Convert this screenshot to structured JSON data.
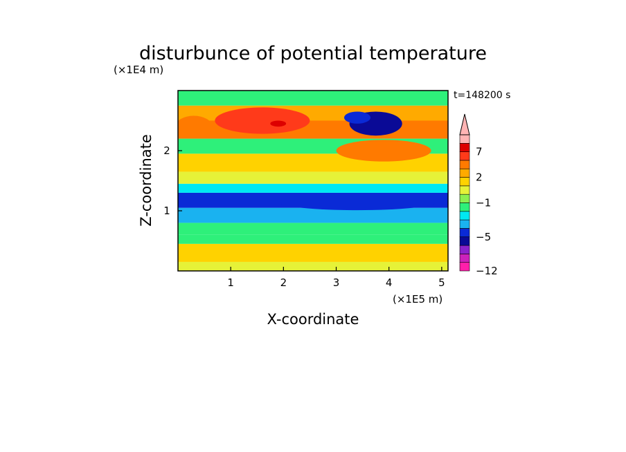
{
  "chart_data": {
    "type": "heatmap",
    "title": "disturbunce of potential temperature",
    "xlabel": "X-coordinate",
    "ylabel": "Z-coordinate",
    "x_unit": "(×1E5 m)",
    "y_unit": "(×1E4 m)",
    "time_label": "t=148200 s",
    "xlim": [
      0,
      5.12
    ],
    "ylim": [
      0,
      3.0
    ],
    "x_ticks": [
      {
        "value": 1,
        "label": "1"
      },
      {
        "value": 2,
        "label": "2"
      },
      {
        "value": 3,
        "label": "3"
      },
      {
        "value": 4,
        "label": "4"
      },
      {
        "value": 5,
        "label": "5"
      }
    ],
    "y_ticks": [
      {
        "value": 1,
        "label": "1"
      },
      {
        "value": 2,
        "label": "2"
      }
    ],
    "colorbar": {
      "levels": [
        -12,
        -10,
        -8,
        -6,
        -5,
        -4,
        -3,
        -2,
        -1,
        0,
        1,
        2,
        3,
        5,
        7,
        9,
        11
      ],
      "labels": [
        {
          "value": 7,
          "label": "7"
        },
        {
          "value": 2,
          "label": "2"
        },
        {
          "value": -1,
          "label": "−1"
        },
        {
          "value": -5,
          "label": "−5"
        },
        {
          "value": -12,
          "label": "−12"
        }
      ],
      "colors": [
        "#ff1faa",
        "#cc22bb",
        "#8b22cc",
        "#0a0a96",
        "#0a2ad6",
        "#1ab2f0",
        "#00e8f2",
        "#2ef07a",
        "#8cf050",
        "#e6f238",
        "#ffd200",
        "#ffaa00",
        "#ff7a00",
        "#ff3a1a",
        "#dd0000",
        "#ffb4b4"
      ],
      "extend": "max"
    },
    "bands": [
      {
        "z": [
          0.0,
          0.15
        ],
        "value": 0.5
      },
      {
        "z": [
          0.15,
          0.45
        ],
        "value": 1.5
      },
      {
        "z": [
          0.45,
          0.6
        ],
        "value": -1.5
      },
      {
        "z": [
          0.6,
          0.8
        ],
        "value": -1.5
      },
      {
        "z": [
          0.8,
          1.05
        ],
        "value": -3.5
      },
      {
        "z": [
          1.05,
          1.3
        ],
        "value": -4.5
      },
      {
        "z": [
          1.3,
          1.45
        ],
        "value": -2.5
      },
      {
        "z": [
          1.45,
          1.65
        ],
        "value": 0.5
      },
      {
        "z": [
          1.65,
          1.95
        ],
        "value": 1.5
      },
      {
        "z": [
          1.95,
          2.2
        ],
        "value": -1.5
      },
      {
        "z": [
          2.2,
          2.5
        ],
        "value": 3.5
      },
      {
        "z": [
          2.5,
          2.75
        ],
        "value": 2.5
      },
      {
        "z": [
          2.75,
          3.0
        ],
        "value": -1.5
      }
    ],
    "features": [
      {
        "x": 3.75,
        "z": 2.45,
        "rx": 0.5,
        "rz": 0.2,
        "value": -5.5
      },
      {
        "x": 1.6,
        "z": 2.5,
        "rx": 0.9,
        "rz": 0.22,
        "value": 5.0
      },
      {
        "x": 0.3,
        "z": 2.4,
        "rx": 0.35,
        "rz": 0.18,
        "value": 4.0
      },
      {
        "x": 3.9,
        "z": 2.0,
        "rx": 0.9,
        "rz": 0.18,
        "value": 3.5
      },
      {
        "x": 1.9,
        "z": 2.45,
        "rx": 0.15,
        "rz": 0.05,
        "value": 8.0
      },
      {
        "x": 3.4,
        "z": 1.15,
        "rx": 1.5,
        "rz": 0.14,
        "value": -4.5
      },
      {
        "x": 3.4,
        "z": 2.55,
        "rx": 0.25,
        "rz": 0.1,
        "value": -4.5
      }
    ]
  }
}
